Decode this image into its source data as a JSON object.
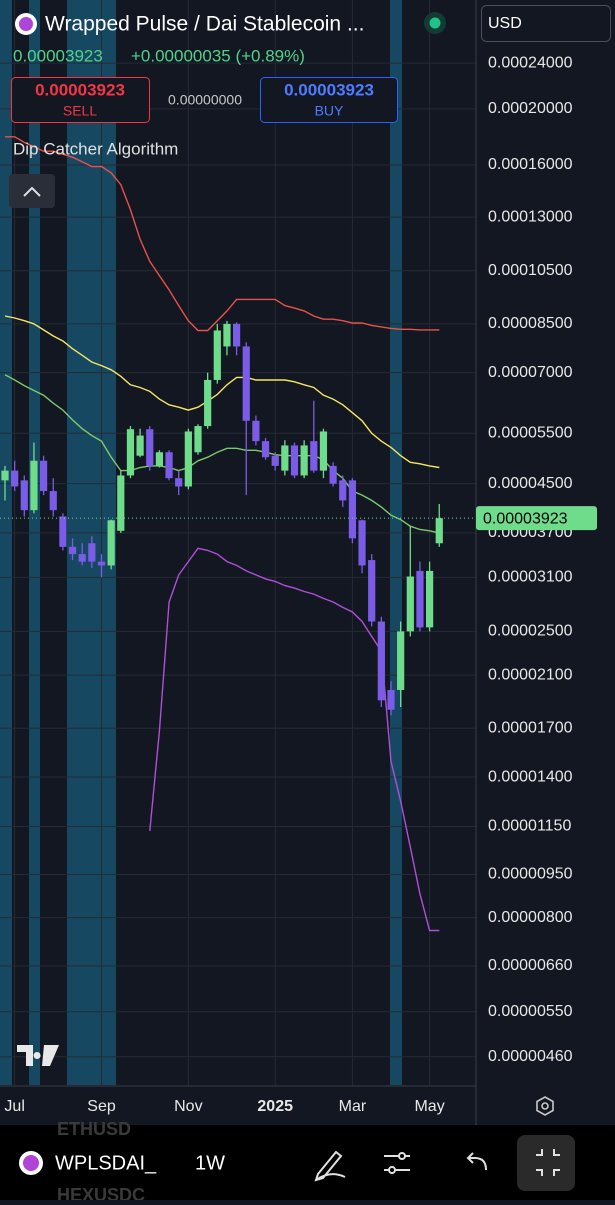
{
  "header": {
    "title": "Wrapped Pulse / Dai Stablecoin ...",
    "price": "0.00003923",
    "change": "+0.00000035 (+0.89%)",
    "sell_price": "0.00003923",
    "sell_label": "SELL",
    "spread": "0.00000000",
    "buy_price": "0.00003923",
    "buy_label": "BUY",
    "indicator_name": "Dip Catcher Algorithm",
    "currency": "USD"
  },
  "chart_data": {
    "type": "candlestick",
    "log_scale": true,
    "grid": true,
    "up_color": "#6fdc8c",
    "down_color": "#7b5ce6",
    "categories": [
      null,
      "Jul",
      null,
      null,
      null,
      null,
      null,
      null,
      null,
      null,
      "Sep",
      null,
      null,
      null,
      null,
      null,
      null,
      null,
      null,
      "Nov",
      null,
      null,
      null,
      null,
      null,
      null,
      null,
      null,
      "2025",
      null,
      null,
      null,
      null,
      null,
      null,
      null,
      "Mar",
      null,
      null,
      null,
      null,
      null,
      null,
      null,
      "May",
      null
    ],
    "open": [
      4.56e-05,
      4.74e-05,
      4.56e-05,
      4.05e-05,
      4.93e-05,
      4.37e-05,
      3.95e-05,
      3.5e-05,
      3.4e-05,
      3.55e-05,
      3.3e-05,
      3.25e-05,
      3.73e-05,
      4.65e-05,
      5.03e-05,
      5.59e-05,
      4.83e-05,
      5.1e-05,
      4.6e-05,
      4.45e-05,
      5.1e-05,
      5.66e-05,
      6.8e-05,
      7.77e-05,
      8.5e-05,
      7.77e-05,
      5.78e-05,
      5.33e-05,
      5.03e-05,
      4.74e-05,
      5.24e-05,
      4.65e-05,
      5.33e-05,
      4.74e-05,
      4.83e-05,
      4.56e-05,
      4.56e-05,
      3.89e-05,
      3.32e-05,
      2.6e-05,
      1.98e-05,
      1.98e-05,
      2.5e-05,
      3.18e-05,
      2.54e-05,
      3.55e-05
    ],
    "high": [
      4.83e-05,
      4.93e-05,
      4.65e-05,
      5.3e-05,
      5.03e-05,
      4.6e-05,
      4e-05,
      3.62e-05,
      3.55e-05,
      3.65e-05,
      3.4e-05,
      3.9e-05,
      4.74e-05,
      5.66e-05,
      5.6e-05,
      5.66e-05,
      5.14e-05,
      5.14e-05,
      4.74e-05,
      5.6e-05,
      5.7e-05,
      7e-05,
      8.5e-05,
      8.6e-05,
      8.55e-05,
      7.9e-05,
      5.9e-05,
      5.4e-05,
      5.1e-05,
      5.35e-05,
      5.3e-05,
      5.35e-05,
      6.26e-05,
      5.6e-05,
      4.9e-05,
      4.65e-05,
      4.6e-05,
      3.9e-05,
      3.4e-05,
      2.65e-05,
      2.05e-05,
      2.6e-05,
      3.8e-05,
      3.3e-05,
      3.3e-05,
      4.15e-05
    ],
    "low": [
      4.21e-05,
      4.37e-05,
      3.95e-05,
      4e-05,
      4.3e-05,
      3.95e-05,
      3.45e-05,
      3.32e-05,
      3.25e-05,
      3.22e-05,
      3.1e-05,
      3.2e-05,
      3.7e-05,
      4.6e-05,
      5e-05,
      4.74e-05,
      4.8e-05,
      4.56e-05,
      4.3e-05,
      4.4e-05,
      5.05e-05,
      5.6e-05,
      6.7e-05,
      7.5e-05,
      7.5e-05,
      4.3e-05,
      5.24e-05,
      4.95e-05,
      4.74e-05,
      4.65e-05,
      4.6e-05,
      4.6e-05,
      4.7e-05,
      4.6e-05,
      4.45e-05,
      4.1e-05,
      3.55e-05,
      3.15e-05,
      2.55e-05,
      1.85e-05,
      1.79e-05,
      1.85e-05,
      2.45e-05,
      2.5e-05,
      2.5e-05,
      3.5e-05
    ],
    "close": [
      4.74e-05,
      4.45e-05,
      4.05e-05,
      4.93e-05,
      4.37e-05,
      4.05e-05,
      3.5e-05,
      3.4e-05,
      3.3e-05,
      3.3e-05,
      3.25e-05,
      3.89e-05,
      4.65e-05,
      5.59e-05,
      5.45e-05,
      4.83e-05,
      5.1e-05,
      4.6e-05,
      4.45e-05,
      5.54e-05,
      5.66e-05,
      6.8e-05,
      8.28e-05,
      8.5e-05,
      7.77e-05,
      5.78e-05,
      5.33e-05,
      5e-05,
      4.83e-05,
      5.24e-05,
      4.65e-05,
      5.24e-05,
      4.74e-05,
      5.54e-05,
      4.5e-05,
      4.21e-05,
      3.62e-05,
      3.25e-05,
      2.6e-05,
      1.9e-05,
      1.83e-05,
      2.5e-05,
      3.11e-05,
      2.54e-05,
      3.18e-05,
      3.923e-05
    ],
    "indicators": [
      {
        "color": "#e8524a",
        "values": [
          0.000179,
          0.000179,
          0.000175,
          0.000172,
          0.000169,
          0.000169,
          0.000167,
          0.000165,
          0.000162,
          0.000159,
          0.000159,
          0.000155,
          0.000148,
          0.000134,
          0.000119,
          0.000109,
          0.000103,
          9.73e-05,
          9.14e-05,
          8.61e-05,
          8.28e-05,
          8.28e-05,
          8.61e-05,
          8.95e-05,
          9.37e-05,
          9.37e-05,
          9.37e-05,
          9.37e-05,
          9.37e-05,
          9.14e-05,
          9.05e-05,
          8.95e-05,
          8.77e-05,
          8.66e-05,
          8.66e-05,
          8.61e-05,
          8.53e-05,
          8.53e-05,
          8.45e-05,
          8.4e-05,
          8.35e-05,
          8.32e-05,
          8.32e-05,
          8.3e-05,
          8.3e-05,
          8.3e-05
        ]
      },
      {
        "color": "#f5e663",
        "values": [
          8.77e-05,
          8.7e-05,
          8.61e-05,
          8.5e-05,
          8.3e-05,
          8.1e-05,
          7.94e-05,
          7.7e-05,
          7.5e-05,
          7.3e-05,
          7.2e-05,
          7.08e-05,
          6.9e-05,
          6.67e-05,
          6.6e-05,
          6.5e-05,
          6.3e-05,
          6.16e-05,
          6.1e-05,
          6.03e-05,
          6.1e-05,
          6.25e-05,
          6.42e-05,
          6.67e-05,
          6.87e-05,
          6.87e-05,
          6.8e-05,
          6.8e-05,
          6.8e-05,
          6.8e-05,
          6.75e-05,
          6.67e-05,
          6.6e-05,
          6.4e-05,
          6.3e-05,
          6.16e-05,
          5.97e-05,
          5.78e-05,
          5.5e-05,
          5.33e-05,
          5.2e-05,
          5.03e-05,
          4.9e-05,
          4.87e-05,
          4.83e-05,
          4.8e-05
        ]
      },
      {
        "color": "#7cc96a",
        "values": [
          6.94e-05,
          6.8e-05,
          6.65e-05,
          6.52e-05,
          6.4e-05,
          6.2e-05,
          6.03e-05,
          5.8e-05,
          5.6e-05,
          5.45e-05,
          5.33e-05,
          5e-05,
          4.74e-05,
          4.74e-05,
          4.8e-05,
          4.83e-05,
          4.83e-05,
          4.8e-05,
          4.74e-05,
          4.8e-05,
          4.93e-05,
          5e-05,
          5.1e-05,
          5.18e-05,
          5.18e-05,
          5.14e-05,
          5.14e-05,
          5.1e-05,
          5.05e-05,
          5.03e-05,
          5.03e-05,
          5.03e-05,
          5.03e-05,
          4.95e-05,
          4.74e-05,
          4.6e-05,
          4.37e-05,
          4.3e-05,
          4.21e-05,
          4.1e-05,
          3.97e-05,
          3.9e-05,
          3.8e-05,
          3.75e-05,
          3.73e-05,
          3.7e-05
        ]
      },
      {
        "color": "#b04fd8",
        "values": [
          null,
          null,
          null,
          null,
          null,
          null,
          null,
          null,
          null,
          null,
          null,
          null,
          null,
          null,
          null,
          1.13e-05,
          1.68e-05,
          2.81e-05,
          3.13e-05,
          3.3e-05,
          3.48e-05,
          3.45e-05,
          3.4e-05,
          3.3e-05,
          3.25e-05,
          3.18e-05,
          3.13e-05,
          3.08e-05,
          3.05e-05,
          3e-05,
          2.97e-05,
          2.93e-05,
          2.9e-05,
          2.85e-05,
          2.81e-05,
          2.75e-05,
          2.7e-05,
          2.6e-05,
          2.45e-05,
          2.31e-05,
          1.49e-05,
          1.27e-05,
          1.06e-05,
          8.8e-06,
          7.6e-06,
          7.6e-06
        ]
      }
    ],
    "ylim": [
      4.11e-06,
      0.0003085
    ],
    "yticks": [
      {
        "value": 0.00024,
        "label": "0.00024000"
      },
      {
        "value": 0.0002,
        "label": "0.00020000"
      },
      {
        "value": 0.00016,
        "label": "0.00016000"
      },
      {
        "value": 0.00013,
        "label": "0.00013000"
      },
      {
        "value": 0.000105,
        "label": "0.00010500"
      },
      {
        "value": 8.5e-05,
        "label": "0.00008500"
      },
      {
        "value": 7e-05,
        "label": "0.00007000"
      },
      {
        "value": 5.5e-05,
        "label": "0.00005500"
      },
      {
        "value": 4.5e-05,
        "label": "0.00004500"
      },
      {
        "value": 3.7e-05,
        "label": "0.00003700"
      },
      {
        "value": 3.1e-05,
        "label": "0.00003100"
      },
      {
        "value": 2.5e-05,
        "label": "0.00002500"
      },
      {
        "value": 2.1e-05,
        "label": "0.00002100"
      },
      {
        "value": 1.7e-05,
        "label": "0.00001700"
      },
      {
        "value": 1.4e-05,
        "label": "0.00001400"
      },
      {
        "value": 1.15e-05,
        "label": "0.00001150"
      },
      {
        "value": 9.5e-06,
        "label": "0.00000950"
      },
      {
        "value": 8e-06,
        "label": "0.00000800"
      },
      {
        "value": 6.6e-06,
        "label": "0.00000660"
      },
      {
        "value": 5.5e-06,
        "label": "0.00000550"
      },
      {
        "value": 4.6e-06,
        "label": "0.00000460"
      }
    ],
    "last_price": {
      "value": 3.923e-05,
      "label": "0.00003923"
    }
  },
  "toolbar": {
    "symbol": "WPLSDAI_",
    "interval": "1W",
    "watchlist": [
      "ETHUSD",
      "HEXUSDC"
    ]
  }
}
